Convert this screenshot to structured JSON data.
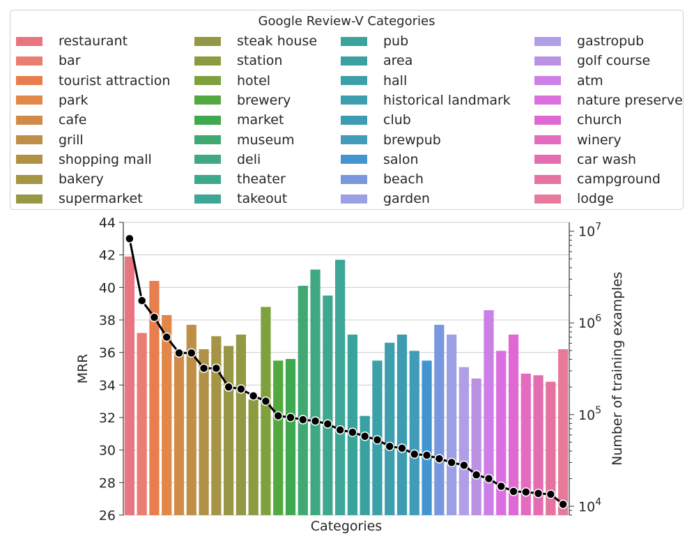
{
  "chart_data": {
    "type": "bar",
    "legend_title": "Google Review-V Categories",
    "xlabel": "Categories",
    "ylabel": "MRR",
    "y2label": "Number of training examples",
    "ylim": [
      26,
      44
    ],
    "y2lim": [
      8000,
      12500000
    ],
    "y2scale": "log",
    "yticks": [
      "26",
      "28",
      "30",
      "32",
      "34",
      "36",
      "38",
      "40",
      "42",
      "44"
    ],
    "y2ticks": [
      {
        "base": "10",
        "exp": "4",
        "value": 10000
      },
      {
        "base": "10",
        "exp": "5",
        "value": 100000
      },
      {
        "base": "10",
        "exp": "6",
        "value": 1000000
      },
      {
        "base": "10",
        "exp": "7",
        "value": 10000000
      }
    ],
    "grid": true,
    "legend_position": "top",
    "categories": [
      "restaurant",
      "bar",
      "tourist attraction",
      "park",
      "cafe",
      "grill",
      "shopping mall",
      "bakery",
      "supermarket",
      "steak house",
      "station",
      "hotel",
      "brewery",
      "market",
      "museum",
      "deli",
      "theater",
      "takeout",
      "pub",
      "area",
      "hall",
      "historical landmark",
      "club",
      "brewpub",
      "salon",
      "beach",
      "garden",
      "gastropub",
      "golf course",
      "atm",
      "nature preserve",
      "church",
      "winery",
      "car wash",
      "campground",
      "lodge"
    ],
    "colors": [
      "#e8757f",
      "#ea7d72",
      "#e87e4e",
      "#e18747",
      "#d18b48",
      "#c08f47",
      "#b19245",
      "#a49444",
      "#989745",
      "#929843",
      "#8c9b40",
      "#7ea13d",
      "#53a83f",
      "#3fa950",
      "#40a972",
      "#3fa982",
      "#3ea88e",
      "#3da697",
      "#3aa39c",
      "#3aa1a2",
      "#3ba0a7",
      "#3d9ead",
      "#3e9cb2",
      "#439bba",
      "#4395d0",
      "#7897dc",
      "#9d9fe4",
      "#b09ee7",
      "#bb91e4",
      "#cc7fe6",
      "#dc6fe0",
      "#e068d2",
      "#e46bbf",
      "#e46db2",
      "#e5729f",
      "#e7799a"
    ],
    "series": [
      {
        "name": "MRR",
        "type": "bar",
        "values": [
          41.9,
          37.2,
          40.4,
          38.3,
          36.1,
          37.7,
          36.2,
          37.0,
          36.4,
          37.1,
          33.1,
          38.8,
          35.5,
          35.6,
          40.1,
          41.1,
          39.5,
          41.7,
          37.1,
          32.1,
          35.5,
          36.6,
          37.1,
          36.1,
          35.5,
          37.7,
          37.1,
          35.1,
          34.4,
          38.6,
          36.1,
          37.1,
          34.7,
          34.6,
          34.2,
          36.2
        ]
      },
      {
        "name": "Number of training examples",
        "type": "line",
        "axis": "right",
        "values": [
          8300000,
          1750000,
          1150000,
          700000,
          470000,
          470000,
          320000,
          320000,
          200000,
          190000,
          160000,
          140000,
          97000,
          93000,
          88000,
          85000,
          79000,
          68000,
          64000,
          58000,
          53000,
          45000,
          43000,
          37000,
          36000,
          33000,
          30000,
          28000,
          22000,
          20000,
          16500,
          14500,
          14300,
          13800,
          13500,
          10500
        ]
      }
    ]
  }
}
